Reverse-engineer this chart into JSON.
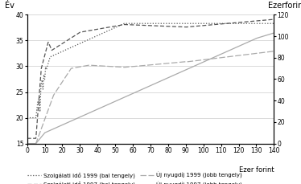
{
  "left_y_label": "Év",
  "right_y_label": "Ezerforint",
  "x_label": "Ezer forint",
  "left_ylim": [
    15,
    40
  ],
  "right_ylim": [
    0,
    120
  ],
  "xlim": [
    0,
    140
  ],
  "left_yticks": [
    15,
    20,
    25,
    30,
    35,
    40
  ],
  "right_yticks": [
    0,
    20,
    40,
    60,
    80,
    100,
    120
  ],
  "xticks": [
    0,
    10,
    20,
    30,
    40,
    50,
    60,
    70,
    80,
    90,
    100,
    110,
    120,
    130,
    140
  ],
  "background_color": "#ffffff",
  "grid_color": "#cccccc",
  "color_dark": "#555555",
  "color_light": "#aaaaaa"
}
